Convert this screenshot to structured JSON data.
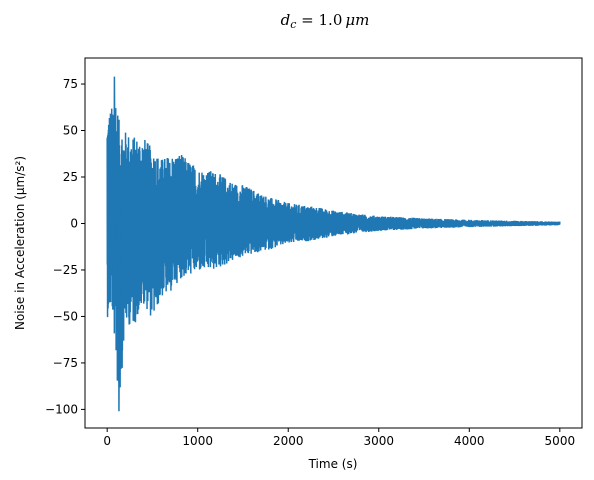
{
  "chart_data": {
    "type": "line",
    "title": "d_c = 1.0 μm",
    "title_parts": {
      "symbol": "d",
      "subscript": "c",
      "rest": " = 1.0",
      "unit": "μm"
    },
    "xlabel": "Time (s)",
    "ylabel": "Noise in Acceleration (μm/s²)",
    "xlim": [
      -245,
      5245
    ],
    "ylim": [
      -110,
      89
    ],
    "xticks": [
      0,
      1000,
      2000,
      3000,
      4000,
      5000
    ],
    "xtick_labels": [
      "0",
      "1000",
      "2000",
      "3000",
      "4000",
      "5000"
    ],
    "yticks": [
      75,
      50,
      25,
      0,
      -25,
      -50,
      -75,
      -100
    ],
    "ytick_labels": [
      "75",
      "50",
      "25",
      "0",
      "−25",
      "−50",
      "−75",
      "−100"
    ],
    "grid": false,
    "legend": "none",
    "series_color": "#1f77b4",
    "series": [
      {
        "x_start": 0,
        "x_end": 5000,
        "min_value": -101,
        "max_value": 79,
        "envelope": [
          {
            "x": 0,
            "upper": 62,
            "lower": -51
          },
          {
            "x": 50,
            "upper": 63,
            "lower": -45
          },
          {
            "x": 80,
            "upper": 79,
            "lower": -62
          },
          {
            "x": 130,
            "upper": 56,
            "lower": -101
          },
          {
            "x": 200,
            "upper": 50,
            "lower": -55
          },
          {
            "x": 300,
            "upper": 47,
            "lower": -55
          },
          {
            "x": 400,
            "upper": 47,
            "lower": -43
          },
          {
            "x": 500,
            "upper": 40,
            "lower": -52
          },
          {
            "x": 600,
            "upper": 35,
            "lower": -40
          },
          {
            "x": 700,
            "upper": 37,
            "lower": -37
          },
          {
            "x": 800,
            "upper": 38,
            "lower": -30
          },
          {
            "x": 1000,
            "upper": 30,
            "lower": -26
          },
          {
            "x": 1200,
            "upper": 28,
            "lower": -25
          },
          {
            "x": 1400,
            "upper": 22,
            "lower": -20
          },
          {
            "x": 1500,
            "upper": 21,
            "lower": -18
          },
          {
            "x": 1800,
            "upper": 14,
            "lower": -14
          },
          {
            "x": 2000,
            "upper": 11,
            "lower": -11
          },
          {
            "x": 2300,
            "upper": 9,
            "lower": -9
          },
          {
            "x": 2500,
            "upper": 7,
            "lower": -7
          },
          {
            "x": 2800,
            "upper": 5,
            "lower": -5
          },
          {
            "x": 3000,
            "upper": 4,
            "lower": -4
          },
          {
            "x": 3500,
            "upper": 2.8,
            "lower": -2.8
          },
          {
            "x": 4000,
            "upper": 2,
            "lower": -2
          },
          {
            "x": 4500,
            "upper": 1.5,
            "lower": -1.5
          },
          {
            "x": 5000,
            "upper": 1,
            "lower": -1
          }
        ]
      }
    ]
  }
}
